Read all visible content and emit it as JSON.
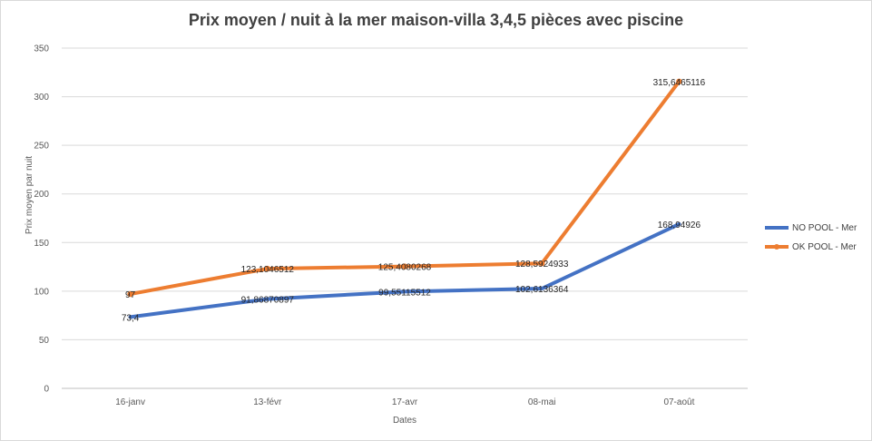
{
  "chart_data": {
    "type": "line",
    "title": "Prix moyen / nuit à la mer maison-villa  3,4,5 pièces avec piscine",
    "xlabel": "Dates",
    "ylabel": "Prix moyen par nuit",
    "categories": [
      "16-janv",
      "13-févr",
      "17-avr",
      "08-mai",
      "07-août"
    ],
    "ylim": [
      0,
      350
    ],
    "yticks": [
      0,
      50,
      100,
      150,
      200,
      250,
      300,
      350
    ],
    "grid": true,
    "legend_position": "right",
    "series": [
      {
        "name": "NO POOL - Mer",
        "color": "#4472c4",
        "marker": "none",
        "values": [
          73.4,
          91.86870897,
          99.55115512,
          102.6136364,
          168.94926
        ],
        "labels": [
          "73,4",
          "91,86870897",
          "99,55115512",
          "102,6136364",
          "168,94926"
        ]
      },
      {
        "name": "OK POOL - Mer",
        "color": "#ed7d31",
        "marker": "circle",
        "values": [
          97,
          123.1046512,
          125.4080268,
          128.5924933,
          315.6465116
        ],
        "labels": [
          "97",
          "123,1046512",
          "125,4080268",
          "128,5924933",
          "315,6465116"
        ]
      }
    ]
  }
}
